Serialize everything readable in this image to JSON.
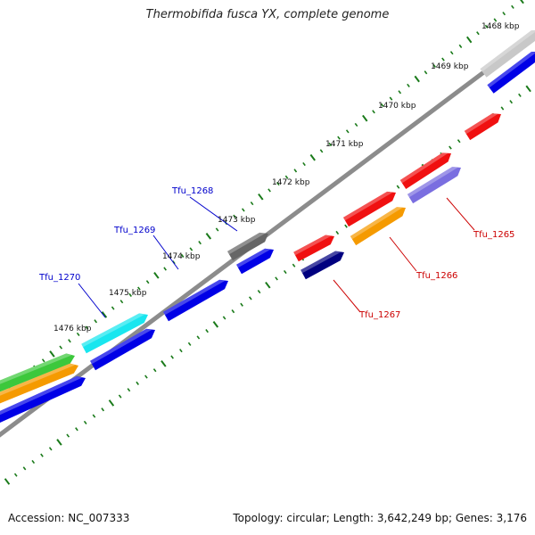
{
  "title": "Thermobifida fusca YX, complete genome",
  "footer": {
    "accession": "Accession: NC_007333",
    "summary": "Topology: circular; Length: 3,642,249 bp; Genes: 3,176"
  },
  "ticks": [
    "1468 kbp",
    "1469 kbp",
    "1470 kbp",
    "1471 kbp",
    "1472 kbp",
    "1473 kbp",
    "1474 kbp",
    "1475 kbp",
    "1476 kbp"
  ],
  "gene_labels": {
    "forward": [
      "Tfu_1268",
      "Tfu_1269",
      "Tfu_1270"
    ],
    "reverse": [
      "Tfu_1265",
      "Tfu_1266",
      "Tfu_1267"
    ]
  },
  "colors": {
    "backbone": "#8c8c8c",
    "tick": "#1a7a1a",
    "blue": "#0000e6",
    "red": "#f01010",
    "orange": "#f59a00",
    "cyan": "#19e6ef",
    "green": "#3cc83c",
    "navy": "#000080",
    "lavender": "#7a6ee0",
    "dark_gray": "#666666",
    "light_gray": "#c8c8c8",
    "label_blue": "#0000cc",
    "label_red": "#cc0000"
  }
}
